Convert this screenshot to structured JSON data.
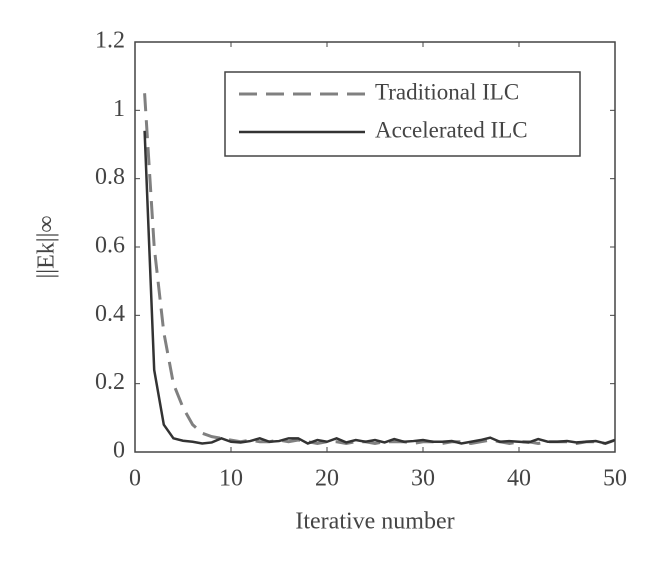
{
  "chart_data": {
    "type": "line",
    "xlabel": "Iterative number",
    "ylabel": "||Ek||∞",
    "x": [
      1,
      2,
      3,
      4,
      5,
      6,
      7,
      8,
      9,
      10,
      11,
      12,
      13,
      14,
      15,
      16,
      17,
      18,
      19,
      20,
      21,
      22,
      23,
      24,
      25,
      26,
      27,
      28,
      29,
      30,
      31,
      32,
      33,
      34,
      35,
      36,
      37,
      38,
      39,
      40,
      41,
      42,
      43,
      44,
      45,
      46,
      47,
      48,
      49,
      50
    ],
    "series": [
      {
        "name": "Traditional ILC",
        "color": "#808080",
        "dashed": true,
        "values": [
          1.05,
          0.6,
          0.35,
          0.2,
          0.13,
          0.08,
          0.055,
          0.045,
          0.04,
          0.035,
          0.03,
          0.035,
          0.03,
          0.03,
          0.035,
          0.03,
          0.035,
          0.03,
          0.025,
          0.03,
          0.03,
          0.025,
          0.03,
          0.03,
          0.025,
          0.03,
          0.03,
          0.03,
          0.025,
          0.03,
          0.03,
          0.025,
          0.03,
          0.03,
          0.025,
          0.03,
          0.035,
          0.03,
          0.025,
          0.03,
          0.03,
          0.025,
          0.03,
          0.03,
          0.03,
          0.025,
          0.03,
          0.03,
          0.025,
          0.035
        ]
      },
      {
        "name": "Accelerated ILC",
        "color": "#333333",
        "dashed": false,
        "values": [
          0.94,
          0.24,
          0.08,
          0.04,
          0.033,
          0.03,
          0.025,
          0.028,
          0.04,
          0.03,
          0.028,
          0.032,
          0.04,
          0.03,
          0.032,
          0.04,
          0.04,
          0.025,
          0.035,
          0.03,
          0.04,
          0.028,
          0.035,
          0.03,
          0.035,
          0.028,
          0.038,
          0.03,
          0.032,
          0.035,
          0.03,
          0.03,
          0.032,
          0.025,
          0.03,
          0.035,
          0.042,
          0.03,
          0.032,
          0.03,
          0.028,
          0.038,
          0.03,
          0.03,
          0.032,
          0.028,
          0.03,
          0.032,
          0.025,
          0.035
        ]
      }
    ],
    "xlim": [
      0,
      50
    ],
    "xticks": [
      0,
      10,
      20,
      30,
      40,
      50
    ],
    "ylim": [
      0,
      1.2
    ],
    "yticks": [
      0,
      0.2,
      0.4,
      0.6,
      0.8,
      1,
      1.2
    ],
    "legend": "upper right",
    "grid": false
  }
}
